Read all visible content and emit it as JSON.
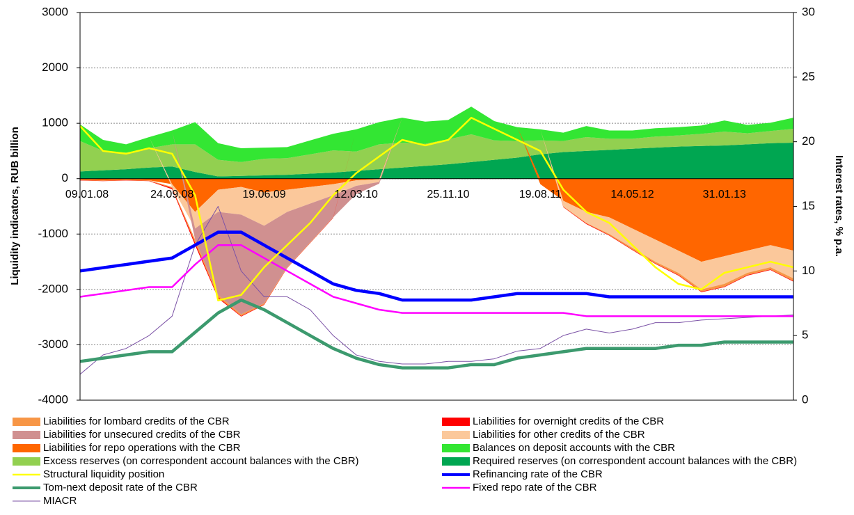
{
  "chart_data": {
    "type": "combo",
    "y_label": "Liquidity indicators, RUB billion",
    "y2_label": "Interest rates, % p.a.",
    "categories": [
      "09.01.08",
      null,
      null,
      null,
      "24.09.08",
      null,
      null,
      null,
      "19.06.09",
      null,
      null,
      null,
      "12.03.10",
      null,
      null,
      null,
      "25.11.10",
      null,
      null,
      null,
      "19.08.11",
      null,
      null,
      null,
      "14.05.12",
      null,
      null,
      null,
      "31.01.13",
      null,
      null,
      null
    ],
    "ylim": [
      -4000,
      3000
    ],
    "yticks": [
      -4000,
      -3000,
      -2000,
      -1000,
      0,
      1000,
      2000,
      3000
    ],
    "y2lim": [
      0,
      30
    ],
    "y2ticks": [
      0,
      5,
      10,
      15,
      20,
      25,
      30
    ],
    "grid": true,
    "series": [
      {
        "name": "Required reserves (on correspondent account balances with the CBR)",
        "type": "area",
        "color": "#00a651",
        "values": [
          130,
          150,
          170,
          200,
          220,
          120,
          40,
          50,
          60,
          70,
          90,
          110,
          140,
          170,
          200,
          230,
          260,
          300,
          340,
          380,
          440,
          480,
          500,
          520,
          540,
          560,
          580,
          590,
          600,
          620,
          640,
          650
        ]
      },
      {
        "name": "Excess reserves (on correspondent  account balances with the CBR)",
        "type": "area",
        "color": "#92d050",
        "values": [
          550,
          350,
          300,
          350,
          400,
          500,
          300,
          250,
          300,
          300,
          350,
          400,
          350,
          450,
          450,
          400,
          450,
          500,
          350,
          300,
          250,
          200,
          250,
          200,
          180,
          200,
          200,
          220,
          250,
          200,
          220,
          250
        ]
      },
      {
        "name": "Balances on deposit accounts with the CBR",
        "type": "area",
        "color": "#33e633",
        "values": [
          300,
          200,
          150,
          200,
          250,
          400,
          300,
          250,
          200,
          200,
          250,
          300,
          400,
          400,
          450,
          400,
          350,
          500,
          350,
          250,
          200,
          150,
          200,
          150,
          150,
          150,
          150,
          150,
          200,
          150,
          150,
          200
        ]
      },
      {
        "name": "Liabilities for repo operations with the CBR",
        "type": "area",
        "color": "#ff6600",
        "values": [
          -20,
          -30,
          -20,
          -30,
          -100,
          -600,
          -200,
          -150,
          -250,
          -200,
          -150,
          -100,
          -30,
          -10,
          0,
          0,
          0,
          0,
          0,
          0,
          -100,
          -400,
          -600,
          -700,
          -900,
          -1100,
          -1300,
          -1500,
          -1400,
          -1300,
          -1200,
          -1300
        ]
      },
      {
        "name": "Liabilities for other credits of the CBR",
        "type": "area",
        "color": "#fbc89b",
        "values": [
          0,
          0,
          0,
          0,
          -50,
          -300,
          -400,
          -500,
          -600,
          -400,
          -300,
          -200,
          -100,
          -50,
          0,
          0,
          0,
          0,
          0,
          0,
          0,
          -100,
          -200,
          -300,
          -350,
          -400,
          -400,
          -500,
          -500,
          -400,
          -400,
          -500
        ]
      },
      {
        "name": "Liabilities for unsecured credits of the CBR",
        "type": "area",
        "color": "#d09090",
        "values": [
          0,
          0,
          0,
          0,
          0,
          -200,
          -1500,
          -1800,
          -1400,
          -1000,
          -700,
          -400,
          -150,
          -30,
          0,
          0,
          0,
          0,
          0,
          0,
          0,
          0,
          0,
          0,
          0,
          0,
          0,
          0,
          0,
          0,
          0,
          0
        ]
      },
      {
        "name": "Liabilities for lombard credits of the CBR",
        "type": "area",
        "color": "#f79646",
        "values": [
          -10,
          -10,
          -10,
          -10,
          -20,
          -60,
          -40,
          -30,
          -20,
          -10,
          -10,
          -5,
          0,
          0,
          0,
          0,
          0,
          0,
          0,
          0,
          0,
          -10,
          -10,
          -20,
          -30,
          -30,
          -40,
          -40,
          -50,
          -40,
          -40,
          -50
        ]
      },
      {
        "name": "Liabilities for overnight credits of the CBR",
        "type": "area",
        "color": "#ff0000",
        "values": [
          -5,
          -5,
          -5,
          -5,
          -20,
          -40,
          -20,
          -10,
          -10,
          -5,
          -5,
          -5,
          0,
          0,
          0,
          0,
          0,
          0,
          0,
          0,
          0,
          -5,
          -10,
          -10,
          -10,
          -10,
          -10,
          -10,
          -10,
          -10,
          -10,
          -10
        ]
      },
      {
        "name": "MIACR",
        "type": "line",
        "axis": "y2",
        "color": "#7b52a6",
        "values": [
          2,
          3.5,
          4,
          5,
          6.5,
          12,
          15,
          10,
          8,
          8,
          7,
          5,
          3.5,
          3,
          2.8,
          2.8,
          3,
          3,
          3.2,
          3.8,
          4,
          5,
          5.5,
          5.2,
          5.5,
          6,
          6,
          6.2,
          6.3,
          6.4,
          6.5,
          6.6
        ]
      },
      {
        "name": "Tom-next deposit rate of the CBR",
        "type": "line",
        "axis": "y2",
        "color": "#3c9a6e",
        "values": [
          3,
          3.25,
          3.5,
          3.75,
          3.75,
          5.25,
          6.75,
          7.75,
          7,
          6,
          5,
          4,
          3.25,
          2.75,
          2.5,
          2.5,
          2.5,
          2.75,
          2.75,
          3.25,
          3.5,
          3.75,
          4,
          4,
          4,
          4,
          4.25,
          4.25,
          4.5,
          4.5,
          4.5,
          4.5
        ]
      },
      {
        "name": "Fixed repo rate of the CBR",
        "type": "line",
        "axis": "y2",
        "color": "#ff00ff",
        "values": [
          8,
          8.25,
          8.5,
          8.75,
          8.75,
          10.5,
          12,
          12,
          11,
          10,
          9,
          8,
          7.5,
          7,
          6.75,
          6.75,
          6.75,
          6.75,
          6.75,
          6.75,
          6.75,
          6.75,
          6.5,
          6.5,
          6.5,
          6.5,
          6.5,
          6.5,
          6.5,
          6.5,
          6.5,
          6.5
        ]
      },
      {
        "name": "Refinancing rate of the CBR",
        "type": "line",
        "axis": "y2",
        "color": "#0000ff",
        "values": [
          10,
          10.25,
          10.5,
          10.75,
          11,
          12,
          13,
          13,
          12,
          11,
          10,
          9,
          8.5,
          8.25,
          7.75,
          7.75,
          7.75,
          7.75,
          8,
          8.25,
          8.25,
          8.25,
          8.25,
          8,
          8,
          8,
          8,
          8,
          8,
          8,
          8,
          8
        ]
      },
      {
        "name": "Structural liquidity position",
        "type": "line",
        "color": "#ffff00",
        "values": [
          950,
          500,
          450,
          550,
          450,
          -300,
          -2200,
          -2100,
          -1600,
          -1200,
          -800,
          -300,
          100,
          400,
          700,
          600,
          700,
          1100,
          900,
          700,
          500,
          -200,
          -600,
          -800,
          -1200,
          -1600,
          -1900,
          -2000,
          -1700,
          -1600,
          -1500,
          -1600
        ]
      }
    ]
  }
}
